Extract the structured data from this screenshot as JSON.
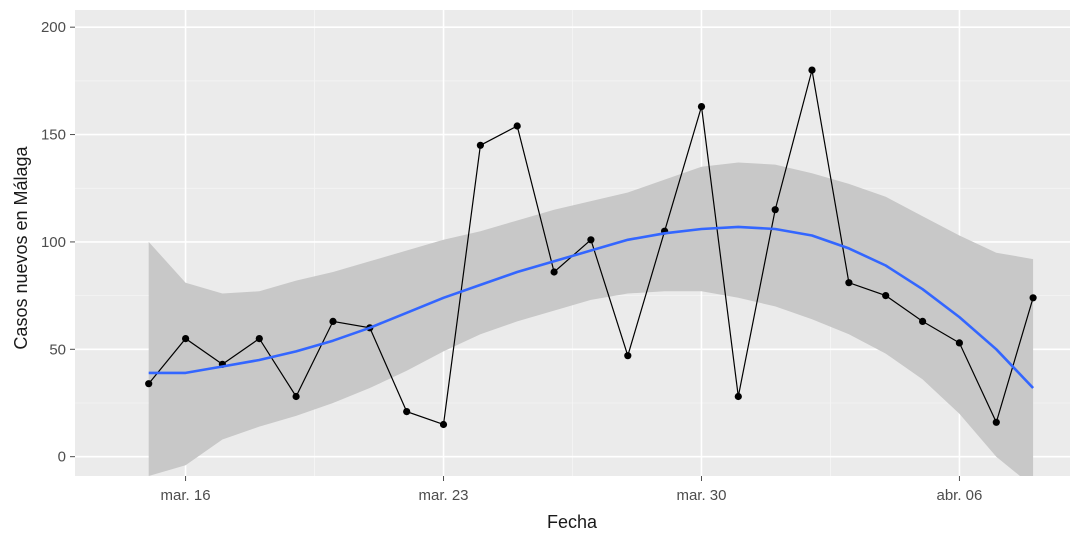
{
  "chart_data": {
    "type": "line",
    "title": "",
    "xlabel": "Fecha",
    "ylabel": "Casos nuevos en Málaga",
    "xlim": [
      "2020-03-13",
      "2020-04-09"
    ],
    "ylim": [
      -9,
      208
    ],
    "x_ticks": [
      {
        "date": "2020-03-16",
        "label": "mar. 16"
      },
      {
        "date": "2020-03-23",
        "label": "mar. 23"
      },
      {
        "date": "2020-03-30",
        "label": "mar. 30"
      },
      {
        "date": "2020-04-06",
        "label": "abr. 06"
      }
    ],
    "y_ticks": [
      0,
      50,
      100,
      150,
      200
    ],
    "grid": true,
    "background": "#ebebeb",
    "series": [
      {
        "kind": "observed",
        "color": "#000000",
        "x": [
          "2020-03-15",
          "2020-03-16",
          "2020-03-17",
          "2020-03-18",
          "2020-03-19",
          "2020-03-20",
          "2020-03-21",
          "2020-03-22",
          "2020-03-23",
          "2020-03-24",
          "2020-03-25",
          "2020-03-26",
          "2020-03-27",
          "2020-03-28",
          "2020-03-29",
          "2020-03-30",
          "2020-03-31",
          "2020-04-01",
          "2020-04-02",
          "2020-04-03",
          "2020-04-04",
          "2020-04-05",
          "2020-04-06",
          "2020-04-07",
          "2020-04-08"
        ],
        "y": [
          34,
          55,
          43,
          55,
          28,
          63,
          60,
          21,
          15,
          145,
          154,
          86,
          101,
          47,
          105,
          163,
          28,
          115,
          180,
          81,
          75,
          63,
          53,
          16,
          74
        ]
      },
      {
        "kind": "smooth",
        "color": "#3366ff",
        "band_color": "#c8c8c8",
        "x": [
          "2020-03-15",
          "2020-03-16",
          "2020-03-17",
          "2020-03-18",
          "2020-03-19",
          "2020-03-20",
          "2020-03-21",
          "2020-03-22",
          "2020-03-23",
          "2020-03-24",
          "2020-03-25",
          "2020-03-26",
          "2020-03-27",
          "2020-03-28",
          "2020-03-29",
          "2020-03-30",
          "2020-03-31",
          "2020-04-01",
          "2020-04-02",
          "2020-04-03",
          "2020-04-04",
          "2020-04-05",
          "2020-04-06",
          "2020-04-07",
          "2020-04-08"
        ],
        "y": [
          39,
          39,
          42,
          45,
          49,
          54,
          60,
          67,
          74,
          80,
          86,
          91,
          96,
          101,
          104,
          106,
          107,
          106,
          103,
          97,
          89,
          78,
          65,
          50,
          32
        ],
        "lower": [
          -9,
          -4,
          8,
          14,
          19,
          25,
          32,
          40,
          49,
          57,
          63,
          68,
          73,
          76,
          77,
          77,
          74,
          70,
          64,
          57,
          48,
          36,
          20,
          0,
          -14
        ],
        "upper": [
          100,
          81,
          76,
          77,
          82,
          86,
          91,
          96,
          101,
          105,
          110,
          115,
          119,
          123,
          129,
          135,
          137,
          136,
          132,
          127,
          121,
          112,
          103,
          95,
          92
        ]
      }
    ]
  }
}
